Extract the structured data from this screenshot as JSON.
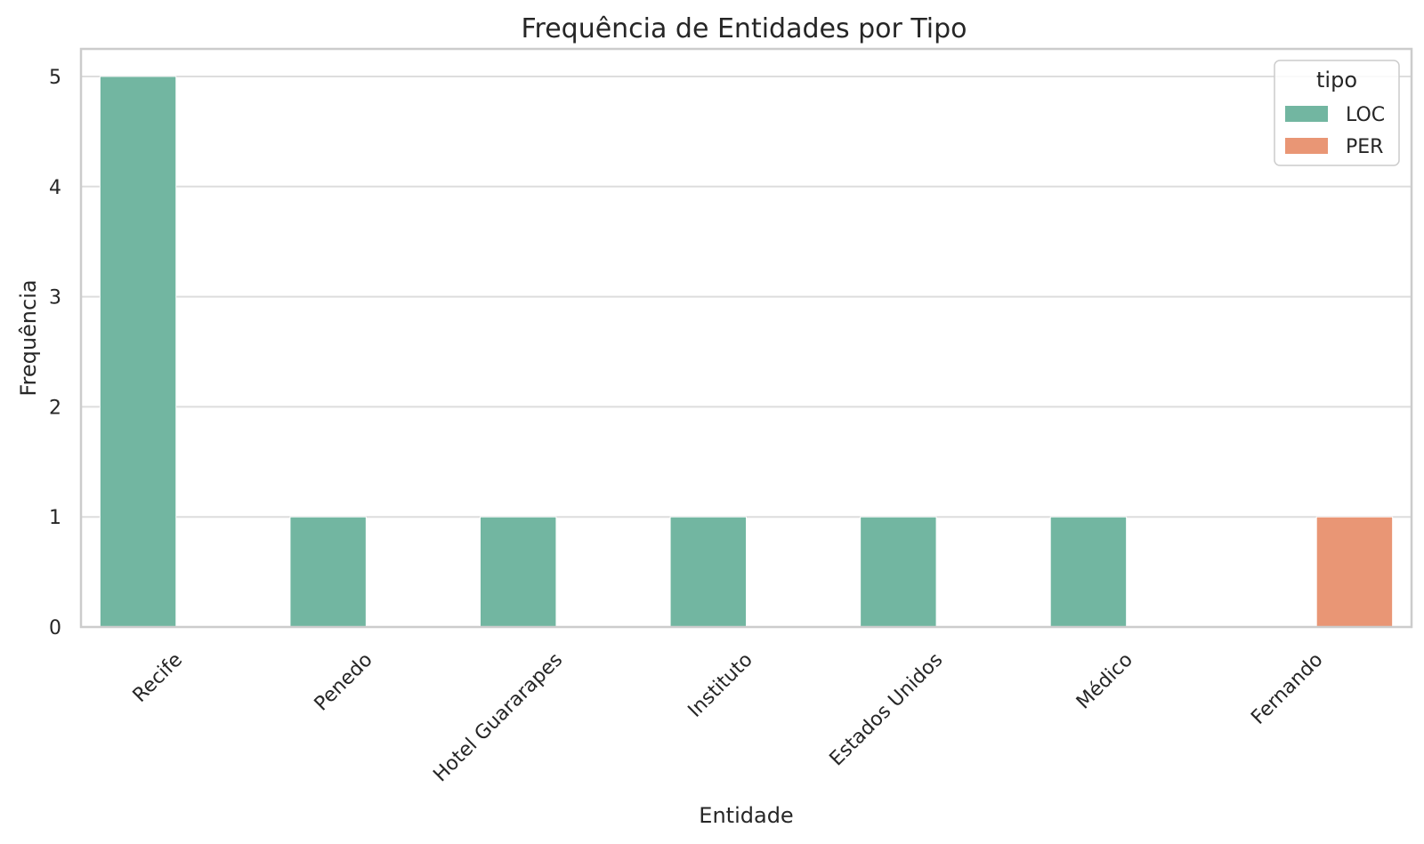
{
  "chart_data": {
    "type": "bar",
    "title": "Frequência de Entidades por Tipo",
    "xlabel": "Entidade",
    "ylabel": "Frequência",
    "categories": [
      "Recife",
      "Penedo",
      "Hotel Guararapes",
      "Instituto",
      "Estados Unidos",
      "Médico",
      "Fernando"
    ],
    "series": [
      {
        "name": "LOC",
        "color": "#72b6a1",
        "values": [
          5,
          1,
          1,
          1,
          1,
          1,
          0
        ]
      },
      {
        "name": "PER",
        "color": "#e99675",
        "values": [
          0,
          0,
          0,
          0,
          0,
          0,
          1
        ]
      }
    ],
    "ylim": [
      0,
      5.25
    ],
    "yticks": [
      0,
      1,
      2,
      3,
      4,
      5
    ],
    "grid": true,
    "legend": {
      "title": "tipo",
      "placement": "top-right"
    }
  }
}
